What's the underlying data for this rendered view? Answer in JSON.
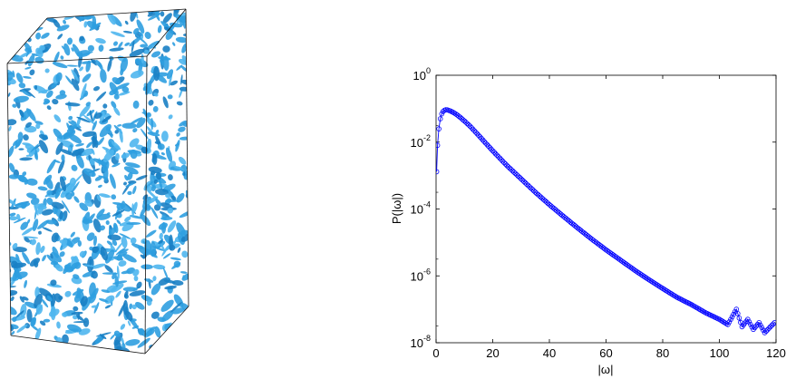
{
  "figure": {
    "left_panel": {
      "kind": "3d-isosurface-cube",
      "surface_color": "#2f9fe0",
      "edge_color": "#000000"
    },
    "right_panel": {
      "kind": "semilog-probability-distribution"
    }
  },
  "chart_data": {
    "type": "line",
    "title": "",
    "xlabel": "|ω|",
    "ylabel": "P(|ω|)",
    "xlim": [
      0,
      120
    ],
    "ylim": [
      1e-08,
      1
    ],
    "yscale": "log",
    "grid": false,
    "legend": false,
    "x_ticks": [
      0,
      20,
      40,
      60,
      80,
      100,
      120
    ],
    "x_tick_labels": [
      "0",
      "20",
      "40",
      "60",
      "80",
      "100",
      "120"
    ],
    "y_ticks": [
      1e-08,
      1e-06,
      0.0001,
      0.01,
      1
    ],
    "y_tick_labels": [
      {
        "base": "10",
        "exp": "-8"
      },
      {
        "base": "10",
        "exp": "-6"
      },
      {
        "base": "10",
        "exp": "-4"
      },
      {
        "base": "10",
        "exp": "-2"
      },
      {
        "base": "10",
        "exp": "0"
      }
    ],
    "series": [
      {
        "color": "#0000ff",
        "marker": "open-circle",
        "x": [
          0.2,
          0.5,
          1.0,
          1.5,
          2.0,
          2.5,
          3.0,
          3.5,
          4.0,
          5.0,
          6.0,
          7.0,
          8.0,
          10.0,
          12.0,
          15.0,
          20.0,
          25.0,
          30.0,
          35.0,
          40.0,
          45.0,
          50.0,
          55.0,
          60.0,
          65.0,
          70.0,
          75.0,
          80.0,
          85.0,
          90.0,
          95.0,
          100.0,
          103.0,
          106.0,
          108.0,
          110.0,
          112.0,
          114.0,
          116.0,
          118.0,
          119.5
        ],
        "y": [
          0.0013,
          0.008,
          0.025,
          0.05,
          0.07,
          0.083,
          0.09,
          0.093,
          0.092,
          0.086,
          0.078,
          0.069,
          0.06,
          0.043,
          0.03,
          0.016,
          0.0055,
          0.002,
          0.0008,
          0.00032,
          0.000135,
          6e-05,
          2.7e-05,
          1.25e-05,
          6e-06,
          3e-06,
          1.5e-06,
          7.8e-07,
          4.2e-07,
          2.3e-07,
          1.4e-07,
          8e-08,
          5e-08,
          3.5e-08,
          1e-07,
          3e-08,
          5e-08,
          2.5e-08,
          4e-08,
          2e-08,
          3e-08,
          4e-08
        ]
      }
    ]
  }
}
